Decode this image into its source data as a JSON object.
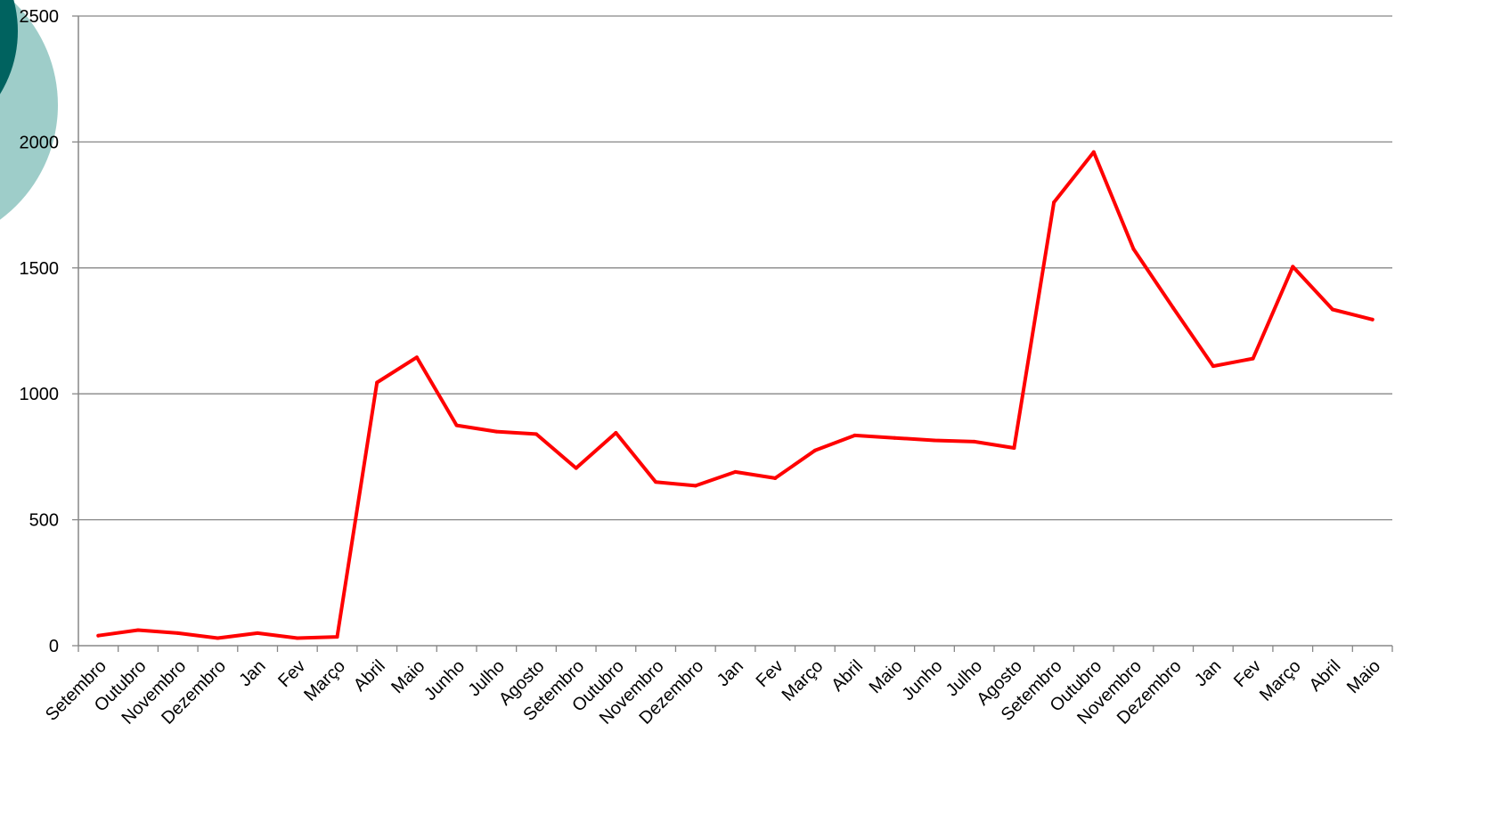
{
  "chart_data": {
    "type": "line",
    "title": "",
    "xlabel": "",
    "ylabel": "",
    "ylim": [
      0,
      2500
    ],
    "yticks": [
      "0",
      "500",
      "1000",
      "1500",
      "2000",
      "2500"
    ],
    "grid": "horizontal",
    "legend": "none",
    "categories": [
      "Setembro",
      "Outubro",
      "Novembro",
      "Dezembro",
      "Jan",
      "Fev",
      "Março",
      "Abril",
      "Maio",
      "Junho",
      "Julho",
      "Agosto",
      "Setembro",
      "Outubro",
      "Novembro",
      "Dezembro",
      "Jan",
      "Fev",
      "Março",
      "Abril",
      "Maio",
      "Junho",
      "Julho",
      "Agosto",
      "Setembro",
      "Outubro",
      "Novembro",
      "Dezembro",
      "Jan",
      "Fev",
      "Março",
      "Abril",
      "Maio"
    ],
    "series": [
      {
        "values": [
          40,
          62,
          50,
          30,
          50,
          30,
          35,
          1045,
          1145,
          875,
          850,
          840,
          705,
          845,
          650,
          635,
          690,
          665,
          775,
          835,
          825,
          815,
          810,
          785,
          1760,
          1960,
          1575,
          1340,
          1110,
          1140,
          1505,
          1335,
          1295
        ]
      }
    ],
    "colors": {
      "line": "#ff0000",
      "grid": "#878787",
      "axis": "#878787",
      "circle_light": "#9ecdc9",
      "circle_dark": "#00625f"
    }
  }
}
